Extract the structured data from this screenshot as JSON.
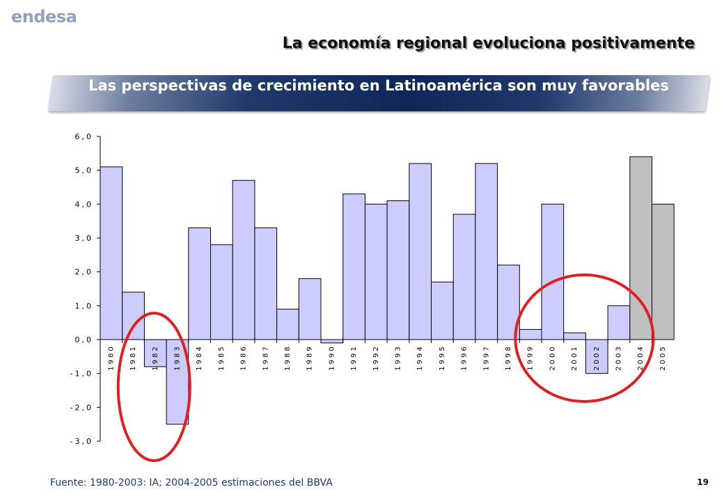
{
  "logo": "endesa",
  "headline": "La economía regional evoluciona positivamente",
  "banner": "Las perspectivas de crecimiento en Latinoamérica son muy favorables",
  "source": "Fuente: 1980-2003: IA; 2004-2005 estimaciones del BBVA",
  "page_number": "19",
  "colors": {
    "actual_bar": "#ccccff",
    "estimate_bar": "#c0c0c0",
    "highlight_circle": "#e02020"
  },
  "chart_data": {
    "type": "bar",
    "categories": [
      "1980",
      "1981",
      "1982",
      "1983",
      "1984",
      "1985",
      "1986",
      "1987",
      "1988",
      "1989",
      "1990",
      "1991",
      "1992",
      "1993",
      "1994",
      "1995",
      "1996",
      "1997",
      "1998",
      "1999",
      "2000",
      "2001",
      "2002",
      "2003",
      "2004",
      "2005"
    ],
    "values": [
      5.1,
      1.4,
      -0.8,
      -2.5,
      3.3,
      2.8,
      4.7,
      3.3,
      0.9,
      1.8,
      -0.1,
      4.3,
      4.0,
      4.1,
      5.2,
      1.7,
      3.7,
      5.2,
      2.2,
      0.3,
      4.0,
      0.2,
      -1.0,
      1.0,
      5.4,
      4.0
    ],
    "estimated": [
      "2004",
      "2005"
    ],
    "ylim": [
      -3.0,
      6.0
    ],
    "yticks": [
      "6,0",
      "5,0",
      "4,0",
      "3,0",
      "2,0",
      "1,0",
      "0,0",
      "-1,0",
      "-2,0",
      "-3,0"
    ],
    "highlighted_ranges": [
      [
        "1981",
        "1983"
      ],
      [
        "1999",
        "2004"
      ]
    ]
  }
}
